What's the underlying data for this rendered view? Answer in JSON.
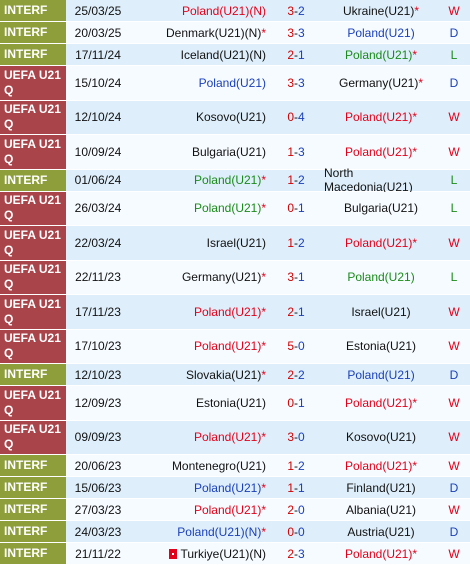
{
  "colors": {
    "interf_bg": "#8e9e3a",
    "uefa_bg": "#a8444a",
    "row_odd": "#deeffb",
    "row_even": "#f6fbff",
    "win": "#e2001a",
    "draw": "#1a3fb8",
    "loss": "#1a8a1a"
  },
  "matches": [
    {
      "competition": "INTERF",
      "date": "25/03/25",
      "home": "Poland(U21)(N)",
      "home_star": false,
      "home_color": "red",
      "score_home": "3",
      "score_away": "2",
      "away": "Ukraine(U21)",
      "away_star": true,
      "away_color": "dark",
      "result": "W"
    },
    {
      "competition": "INTERF",
      "date": "20/03/25",
      "home": "Denmark(U21)(N)",
      "home_star": true,
      "home_color": "dark",
      "score_home": "3",
      "score_away": "3",
      "away": "Poland(U21)",
      "away_star": false,
      "away_color": "blue",
      "result": "D"
    },
    {
      "competition": "INTERF",
      "date": "17/11/24",
      "home": "Iceland(U21)(N)",
      "home_star": false,
      "home_color": "dark",
      "score_home": "2",
      "score_away": "1",
      "away": "Poland(U21)",
      "away_star": true,
      "away_color": "green",
      "result": "L"
    },
    {
      "competition": "UEFA U21 Q",
      "date": "15/10/24",
      "home": "Poland(U21)",
      "home_star": false,
      "home_color": "blue",
      "score_home": "3",
      "score_away": "3",
      "away": "Germany(U21)",
      "away_star": true,
      "away_color": "dark",
      "result": "D"
    },
    {
      "competition": "UEFA U21 Q",
      "date": "12/10/24",
      "home": "Kosovo(U21)",
      "home_star": false,
      "home_color": "dark",
      "score_home": "0",
      "score_away": "4",
      "away": "Poland(U21)",
      "away_star": true,
      "away_color": "red",
      "result": "W"
    },
    {
      "competition": "UEFA U21 Q",
      "date": "10/09/24",
      "home": "Bulgaria(U21)",
      "home_star": false,
      "home_color": "dark",
      "score_home": "1",
      "score_away": "3",
      "away": "Poland(U21)",
      "away_star": true,
      "away_color": "red",
      "result": "W"
    },
    {
      "competition": "INTERF",
      "date": "01/06/24",
      "home": "Poland(U21)",
      "home_star": true,
      "home_color": "green",
      "score_home": "1",
      "score_away": "2",
      "away": "North Macedonia(U21)",
      "away_star": false,
      "away_color": "dark",
      "result": "L"
    },
    {
      "competition": "UEFA U21 Q",
      "date": "26/03/24",
      "home": "Poland(U21)",
      "home_star": true,
      "home_color": "green",
      "score_home": "0",
      "score_away": "1",
      "away": "Bulgaria(U21)",
      "away_star": false,
      "away_color": "dark",
      "result": "L"
    },
    {
      "competition": "UEFA U21 Q",
      "date": "22/03/24",
      "home": "Israel(U21)",
      "home_star": false,
      "home_color": "dark",
      "score_home": "1",
      "score_away": "2",
      "away": "Poland(U21)",
      "away_star": true,
      "away_color": "red",
      "result": "W"
    },
    {
      "competition": "UEFA U21 Q",
      "date": "22/11/23",
      "home": "Germany(U21)",
      "home_star": true,
      "home_color": "dark",
      "score_home": "3",
      "score_away": "1",
      "away": "Poland(U21)",
      "away_star": false,
      "away_color": "green",
      "result": "L"
    },
    {
      "competition": "UEFA U21 Q",
      "date": "17/11/23",
      "home": "Poland(U21)",
      "home_star": true,
      "home_color": "red",
      "score_home": "2",
      "score_away": "1",
      "away": "Israel(U21)",
      "away_star": false,
      "away_color": "dark",
      "result": "W"
    },
    {
      "competition": "UEFA U21 Q",
      "date": "17/10/23",
      "home": "Poland(U21)",
      "home_star": true,
      "home_color": "red",
      "score_home": "5",
      "score_away": "0",
      "away": "Estonia(U21)",
      "away_star": false,
      "away_color": "dark",
      "result": "W"
    },
    {
      "competition": "INTERF",
      "date": "12/10/23",
      "home": "Slovakia(U21)",
      "home_star": true,
      "home_color": "dark",
      "score_home": "2",
      "score_away": "2",
      "away": "Poland(U21)",
      "away_star": false,
      "away_color": "blue",
      "result": "D"
    },
    {
      "competition": "UEFA U21 Q",
      "date": "12/09/23",
      "home": "Estonia(U21)",
      "home_star": false,
      "home_color": "dark",
      "score_home": "0",
      "score_away": "1",
      "away": "Poland(U21)",
      "away_star": true,
      "away_color": "red",
      "result": "W"
    },
    {
      "competition": "UEFA U21 Q",
      "date": "09/09/23",
      "home": "Poland(U21)",
      "home_star": true,
      "home_color": "red",
      "score_home": "3",
      "score_away": "0",
      "away": "Kosovo(U21)",
      "away_star": false,
      "away_color": "dark",
      "result": "W"
    },
    {
      "competition": "INTERF",
      "date": "20/06/23",
      "home": "Montenegro(U21)",
      "home_star": false,
      "home_color": "dark",
      "score_home": "1",
      "score_away": "2",
      "away": "Poland(U21)",
      "away_star": true,
      "away_color": "red",
      "result": "W"
    },
    {
      "competition": "INTERF",
      "date": "15/06/23",
      "home": "Poland(U21)",
      "home_star": true,
      "home_color": "blue",
      "score_home": "1",
      "score_away": "1",
      "away": "Finland(U21)",
      "away_star": false,
      "away_color": "dark",
      "result": "D"
    },
    {
      "competition": "INTERF",
      "date": "27/03/23",
      "home": "Poland(U21)",
      "home_star": true,
      "home_color": "red",
      "score_home": "2",
      "score_away": "0",
      "away": "Albania(U21)",
      "away_star": false,
      "away_color": "dark",
      "result": "W"
    },
    {
      "competition": "INTERF",
      "date": "24/03/23",
      "home": "Poland(U21)(N)",
      "home_star": true,
      "home_color": "blue",
      "score_home": "0",
      "score_away": "0",
      "away": "Austria(U21)",
      "away_star": false,
      "away_color": "dark",
      "result": "D"
    },
    {
      "competition": "INTERF",
      "date": "21/11/22",
      "home": "Turkiye(U21)(N)",
      "home_star": false,
      "home_color": "dark",
      "home_flag": "red-flag-icon",
      "score_home": "2",
      "score_away": "3",
      "away": "Poland(U21)",
      "away_star": true,
      "away_color": "red",
      "result": "W"
    }
  ]
}
